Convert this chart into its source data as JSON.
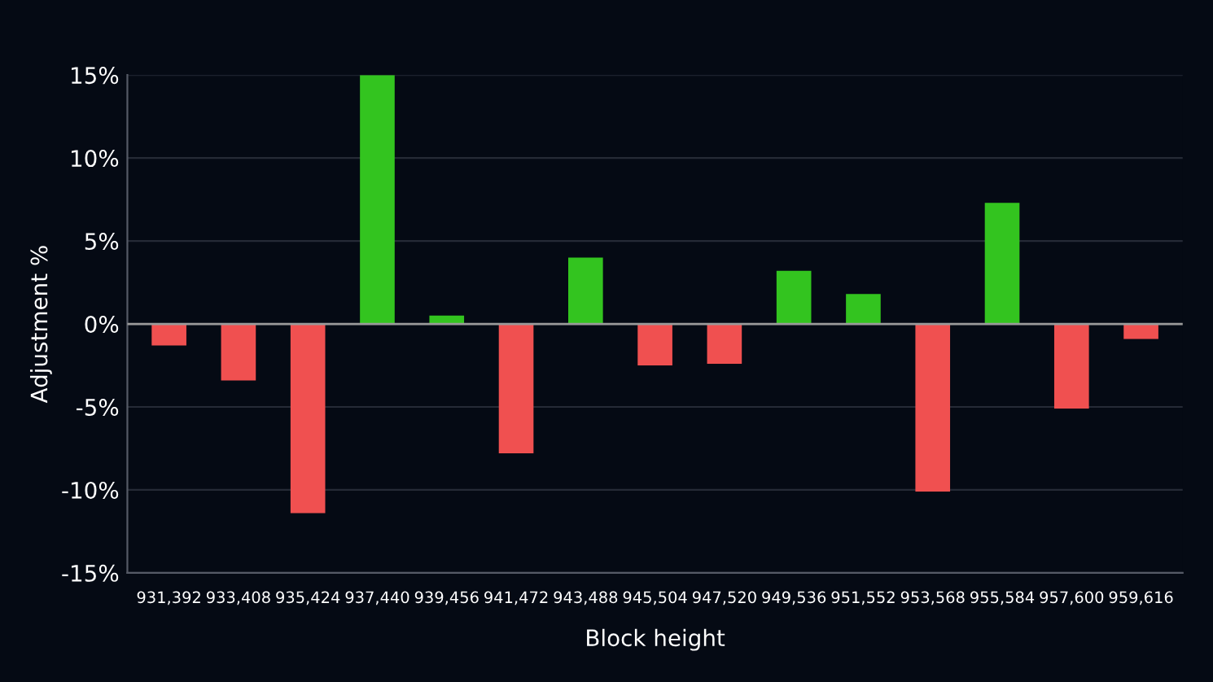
{
  "chart_data": {
    "type": "bar",
    "xlabel": "Block height",
    "ylabel": "Adjustment %",
    "categories": [
      "931,392",
      "933,408",
      "935,424",
      "937,440",
      "939,456",
      "941,472",
      "943,488",
      "945,504",
      "947,520",
      "949,536",
      "951,552",
      "953,568",
      "955,584",
      "957,600",
      "959,616"
    ],
    "values": [
      -1.3,
      -3.4,
      -11.4,
      15.0,
      0.5,
      -7.8,
      4.0,
      -2.5,
      -2.4,
      3.2,
      1.8,
      -10.1,
      7.3,
      -5.1,
      -0.9
    ],
    "colors": [
      "#f05050",
      "#f05050",
      "#f05050",
      "#33c41f",
      "#33c41f",
      "#f05050",
      "#33c41f",
      "#f05050",
      "#f05050",
      "#33c41f",
      "#33c41f",
      "#f05050",
      "#33c41f",
      "#f05050",
      "#f05050"
    ],
    "ylim": [
      -15,
      15
    ],
    "yticks": [
      {
        "value": -15,
        "label": "-15%"
      },
      {
        "value": -10,
        "label": "-10%"
      },
      {
        "value": -5,
        "label": "-5%"
      },
      {
        "value": 0,
        "label": "0%"
      },
      {
        "value": 5,
        "label": "5%"
      },
      {
        "value": 10,
        "label": "10%"
      },
      {
        "value": 15,
        "label": "15%"
      }
    ],
    "ref_lines": [
      {
        "axis": "y",
        "value": 0,
        "color": "#9a9a9a"
      }
    ],
    "grid": "y"
  }
}
